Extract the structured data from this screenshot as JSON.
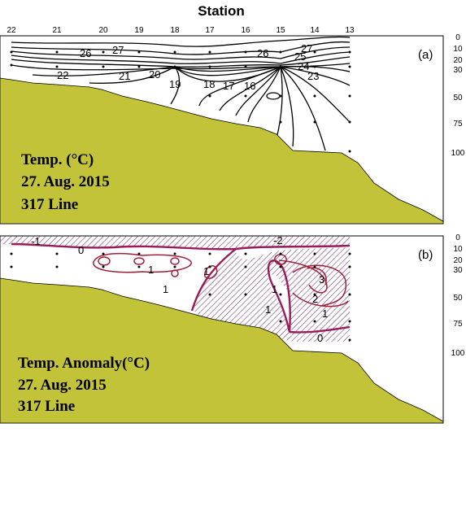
{
  "chart_data": [
    {
      "type": "contour",
      "panel_label": "(a)",
      "top_axis_title": "Station",
      "stations": [
        "22",
        "21",
        "20",
        "19",
        "18",
        "17",
        "16",
        "15",
        "14",
        "13"
      ],
      "depth_ticks": [
        "0",
        "10",
        "20",
        "30",
        "50",
        "75",
        "100"
      ],
      "annotation": [
        "Temp. (°C)",
        "27. Aug. 2015",
        "317 Line"
      ],
      "contour_labels": [
        "26",
        "27",
        "22",
        "21",
        "20",
        "19",
        "18",
        "17",
        "16",
        "26",
        "27",
        "25",
        "24",
        "23"
      ],
      "colors": {
        "contour": "#000000",
        "land": "#c3c33a"
      }
    },
    {
      "type": "contour",
      "panel_label": "(b)",
      "depth_ticks": [
        "0",
        "10",
        "20",
        "30",
        "50",
        "75",
        "100"
      ],
      "annotation": [
        "Temp. Anomaly(°C)",
        "27. Aug. 2015",
        "317 Line"
      ],
      "contour_labels": [
        "-1",
        "0",
        "1",
        "1",
        "1",
        "1",
        "-2",
        "3",
        "2",
        "1",
        "1",
        "0"
      ],
      "colors": {
        "zero_contour": "#9b1b5a",
        "positive_contour": "#a0203a",
        "hatch": "#6b1f6b",
        "land": "#c3c33a"
      }
    }
  ]
}
